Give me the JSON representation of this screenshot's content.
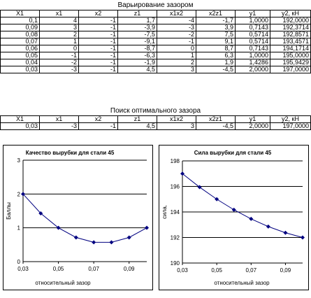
{
  "section1": {
    "title": "Варьирование зазором",
    "headers": [
      "X1",
      "x1",
      "x2",
      "z1",
      "x1x2",
      "x2z1",
      "y1",
      "y2, кН"
    ],
    "rows": [
      [
        "0,1",
        "4",
        "-1",
        "1,7",
        "-4",
        "-1,7",
        "1,0000",
        "192,0000"
      ],
      [
        "0,09",
        "3",
        "-1",
        "-3,9",
        "-3",
        "3,9",
        "0,7143",
        "192,3714"
      ],
      [
        "0,08",
        "2",
        "-1",
        "-7,5",
        "-2",
        "7,5",
        "0,5714",
        "192,8571"
      ],
      [
        "0,07",
        "1",
        "-1",
        "-9,1",
        "-1",
        "9,1",
        "0,5714",
        "193,4571"
      ],
      [
        "0,06",
        "0",
        "-1",
        "-8,7",
        "0",
        "8,7",
        "0,7143",
        "194,1714"
      ],
      [
        "0,05",
        "-1",
        "-1",
        "-6,3",
        "1",
        "6,3",
        "1,0000",
        "195,0000"
      ],
      [
        "0,04",
        "-2",
        "-1",
        "-1,9",
        "2",
        "1,9",
        "1,4286",
        "195,9429"
      ],
      [
        "0,03",
        "-3",
        "-1",
        "4,5",
        "3",
        "-4,5",
        "2,0000",
        "197,0000"
      ]
    ]
  },
  "section2": {
    "title": "Поиск оптимального зазора",
    "headers": [
      "X1",
      "x1",
      "x2",
      "z1",
      "x1x2",
      "x2z1",
      "y1",
      "y2, кН"
    ],
    "rows": [
      [
        "0,03",
        "-3",
        "-1",
        "4,5",
        "3",
        "-4,5",
        "2,0000",
        "197,0000"
      ]
    ]
  },
  "chart_data": [
    {
      "type": "line",
      "title": "Качество вырубки для стали 45",
      "xlabel": "относительный зазор",
      "ylabel": "Баллы",
      "x": [
        0.03,
        0.04,
        0.05,
        0.06,
        0.07,
        0.08,
        0.09,
        0.1
      ],
      "values": [
        2.0,
        1.4286,
        1.0,
        0.7143,
        0.5714,
        0.5714,
        0.7143,
        1.0
      ],
      "xlim": [
        0.03,
        0.1
      ],
      "ylim": [
        0,
        3
      ],
      "xticks": [
        0.03,
        0.05,
        0.07,
        0.09
      ],
      "xtick_labels": [
        "0,03",
        "0,05",
        "0,07",
        "0,09"
      ],
      "yticks": [
        0,
        1,
        2,
        3
      ],
      "ytick_labels": [
        "0",
        "1",
        "2",
        "3"
      ],
      "grid": "horizontal",
      "color": "#000080"
    },
    {
      "type": "line",
      "title": "Сила вырубки для стали 45",
      "xlabel": "относительный зазор",
      "ylabel": "сила,",
      "x": [
        0.03,
        0.04,
        0.05,
        0.06,
        0.07,
        0.08,
        0.09,
        0.1
      ],
      "values": [
        197.0,
        195.9429,
        195.0,
        194.1714,
        193.4571,
        192.8571,
        192.3714,
        192.0
      ],
      "xlim": [
        0.03,
        0.1
      ],
      "ylim": [
        190,
        198
      ],
      "xticks": [
        0.03,
        0.05,
        0.07,
        0.09
      ],
      "xtick_labels": [
        "0,03",
        "0,05",
        "0,07",
        "0,09"
      ],
      "yticks": [
        190,
        192,
        194,
        196,
        198
      ],
      "ytick_labels": [
        "190",
        "192",
        "194",
        "196",
        "198"
      ],
      "grid": "horizontal",
      "color": "#000080"
    }
  ]
}
